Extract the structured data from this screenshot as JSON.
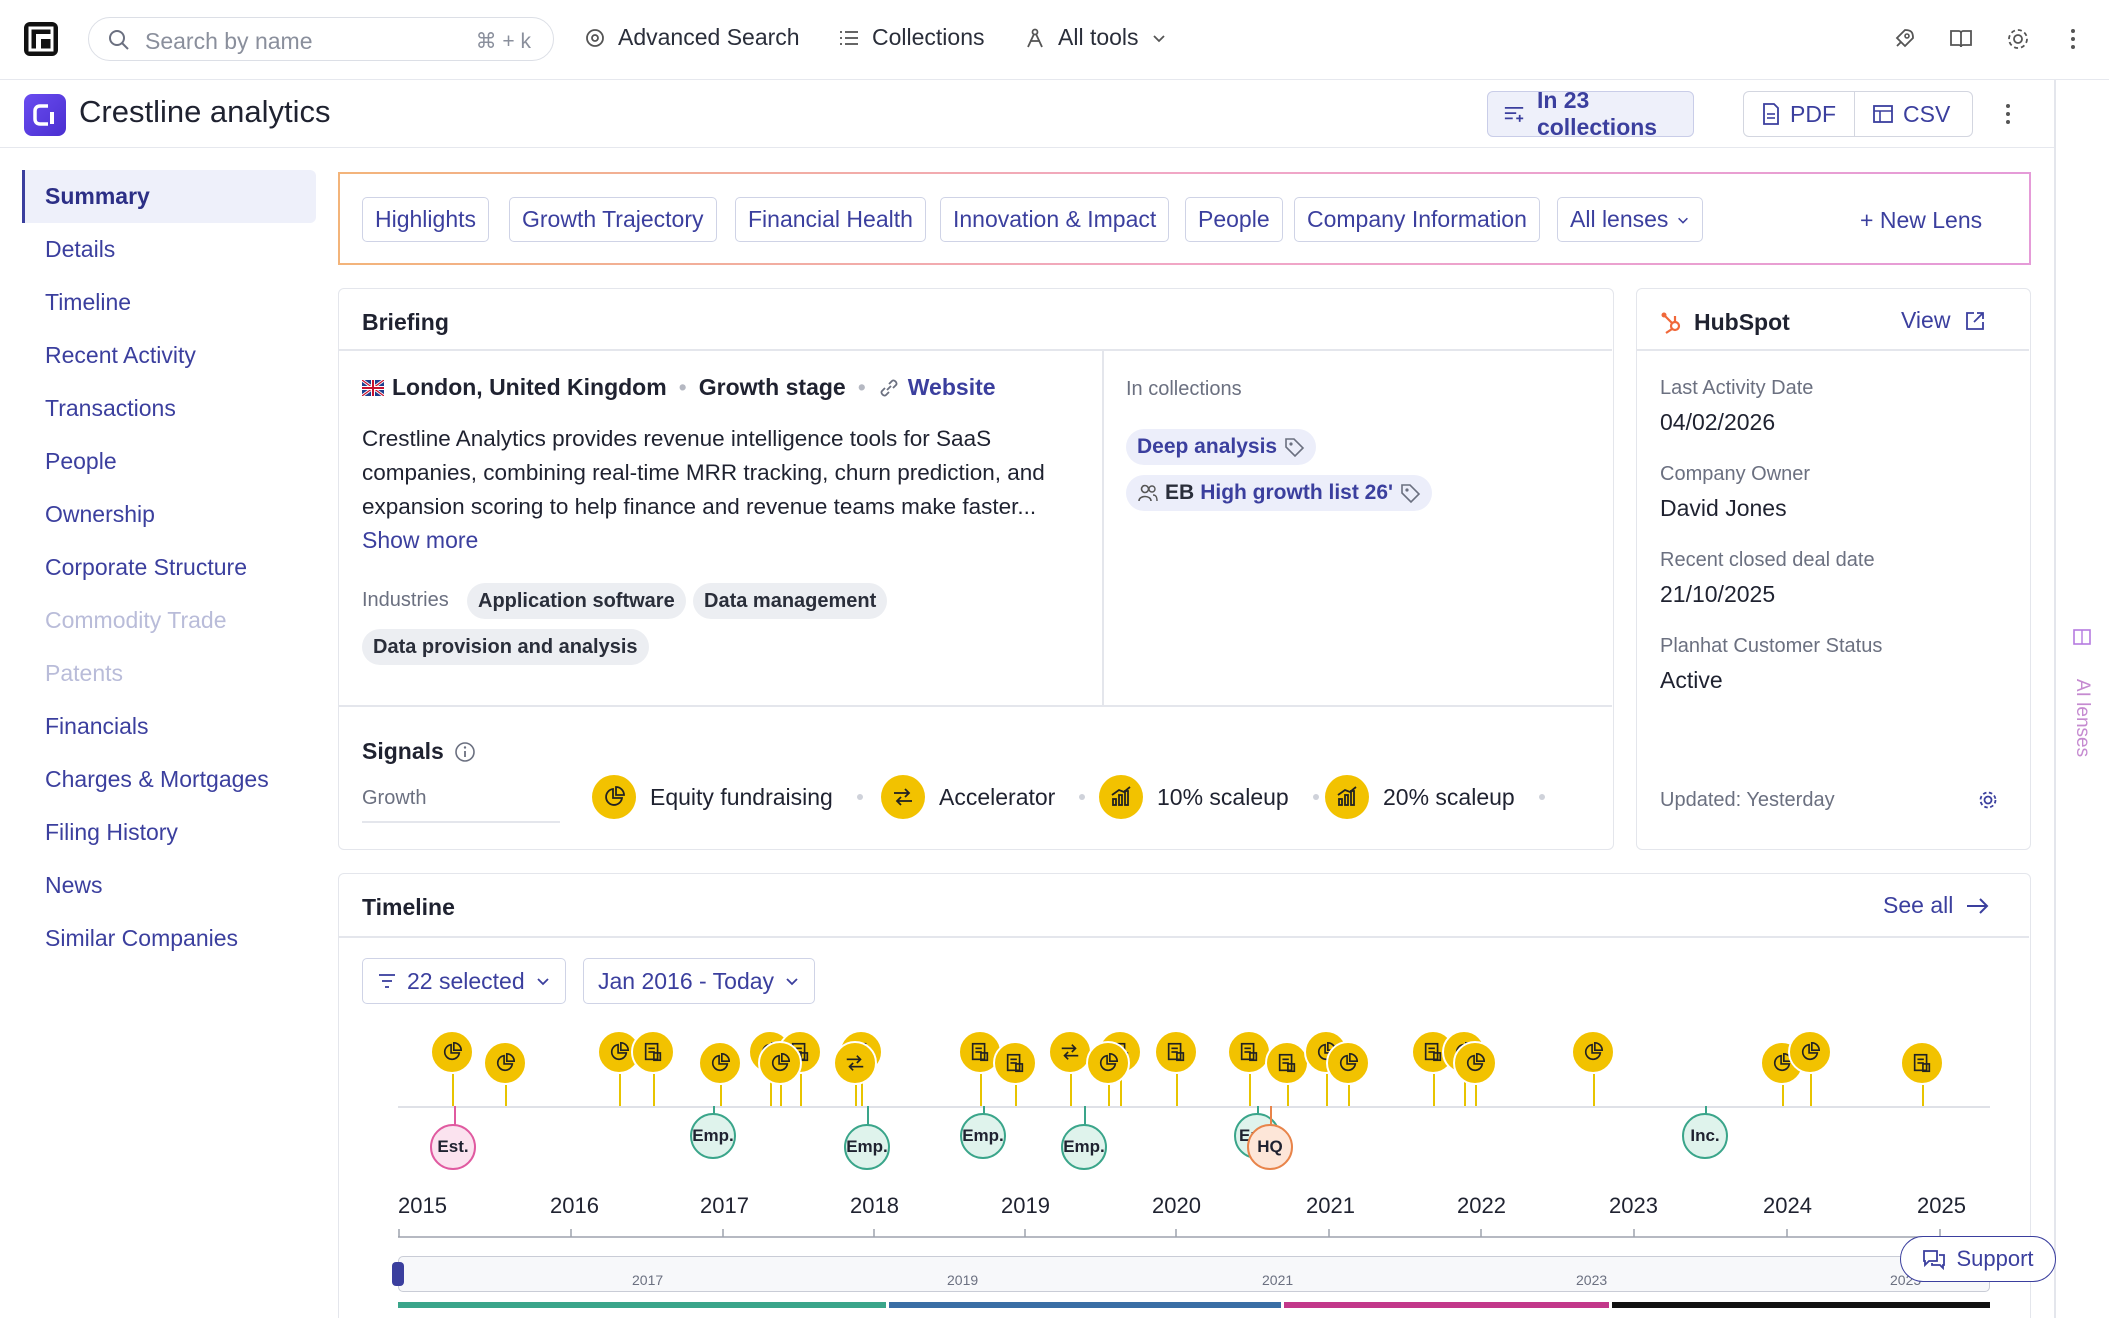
{
  "topbar": {
    "search_placeholder": "Search by name",
    "search_shortcut": "⌘ + k",
    "nav": [
      {
        "label": "Advanced Search",
        "icon": "target-icon"
      },
      {
        "label": "Collections",
        "icon": "list-icon"
      },
      {
        "label": "All tools",
        "icon": "compass-icon"
      }
    ],
    "right_icons": [
      "rocket-icon",
      "book-icon",
      "gear-icon",
      "more-vertical-icon"
    ]
  },
  "company": {
    "logo_text": "C",
    "name": "Crestline analytics",
    "collections_label": "In 23 collections",
    "pdf_label": "PDF",
    "csv_label": "CSV"
  },
  "sidebar": {
    "items": [
      {
        "label": "Summary",
        "state": "active"
      },
      {
        "label": "Details",
        "state": "normal"
      },
      {
        "label": "Timeline",
        "state": "normal"
      },
      {
        "label": "Recent Activity",
        "state": "normal"
      },
      {
        "label": "Transactions",
        "state": "normal"
      },
      {
        "label": "People",
        "state": "normal"
      },
      {
        "label": "Ownership",
        "state": "normal"
      },
      {
        "label": "Corporate Structure",
        "state": "normal"
      },
      {
        "label": "Commodity Trade",
        "state": "disabled"
      },
      {
        "label": "Patents",
        "state": "disabled"
      },
      {
        "label": "Financials",
        "state": "normal"
      },
      {
        "label": "Charges & Mortgages",
        "state": "normal"
      },
      {
        "label": "Filing History",
        "state": "normal"
      },
      {
        "label": "News",
        "state": "normal"
      },
      {
        "label": "Similar Companies",
        "state": "normal"
      }
    ]
  },
  "lenses": {
    "tabs": [
      "Highlights",
      "Growth Trajectory",
      "Financial Health",
      "Innovation & Impact",
      "People",
      "Company Information"
    ],
    "all_label": "All lenses",
    "new_label": "New Lens"
  },
  "briefing": {
    "title": "Briefing",
    "location": "London, United Kingdom",
    "stage": "Growth stage",
    "website_label": "Website",
    "description": "Crestline Analytics provides revenue intelligence tools for SaaS companies, combining real-time MRR tracking, churn prediction, and expansion scoring to help finance and revenue teams make faster...",
    "show_more": "Show more",
    "industries_label": "Industries",
    "industries": [
      "Application software",
      "Data management",
      "Data provision and analysis"
    ],
    "in_collections_label": "In collections",
    "collections": [
      {
        "prefix": "",
        "label": "Deep  analysis"
      },
      {
        "prefix": "EB",
        "label": "High growth list 26'"
      }
    ]
  },
  "signals": {
    "title": "Signals",
    "category": "Growth",
    "items": [
      "Equity fundraising",
      "Accelerator",
      "10% scaleup",
      "20% scaleup"
    ]
  },
  "hubspot": {
    "title": "HubSpot",
    "view_label": "View",
    "fields": [
      {
        "label": "Last Activity Date",
        "value": "04/02/2026"
      },
      {
        "label": "Company Owner",
        "value": "David Jones"
      },
      {
        "label": "Recent closed deal date",
        "value": "21/10/2025"
      },
      {
        "label": "Planhat Customer Status",
        "value": "Active"
      }
    ],
    "updated": "Updated: Yesterday"
  },
  "timeline": {
    "title": "Timeline",
    "see_all": "See all",
    "filter_label": "22 selected",
    "range_label": "Jan 2016 - Today",
    "years": [
      "2015",
      "2016",
      "2017",
      "2018",
      "2019",
      "2020",
      "2021",
      "2022",
      "2023",
      "2024",
      "2025"
    ],
    "mini_years": [
      "2017",
      "2019",
      "2021",
      "2023",
      "2025"
    ],
    "markers": [
      {
        "label": "Est.",
        "color": "#e05aa0"
      },
      {
        "label": "Emp.",
        "color": "#3aa58a"
      },
      {
        "label": "Emp.",
        "color": "#3aa58a"
      },
      {
        "label": "Emp.",
        "color": "#3aa58a"
      },
      {
        "label": "Emp.",
        "color": "#3aa58a"
      },
      {
        "label": "Em",
        "color": "#3aa58a"
      },
      {
        "label": "HQ",
        "color": "#e8844a"
      },
      {
        "label": "Inc.",
        "color": "#3aa58a"
      }
    ]
  },
  "ai_lenses_label": "AI lenses",
  "support_label": "Support",
  "colors": {
    "accent": "#3b3f9e",
    "signal": "#f2c200",
    "pink": "#e05aa0",
    "green": "#3aa58a",
    "orange": "#e8844a"
  }
}
